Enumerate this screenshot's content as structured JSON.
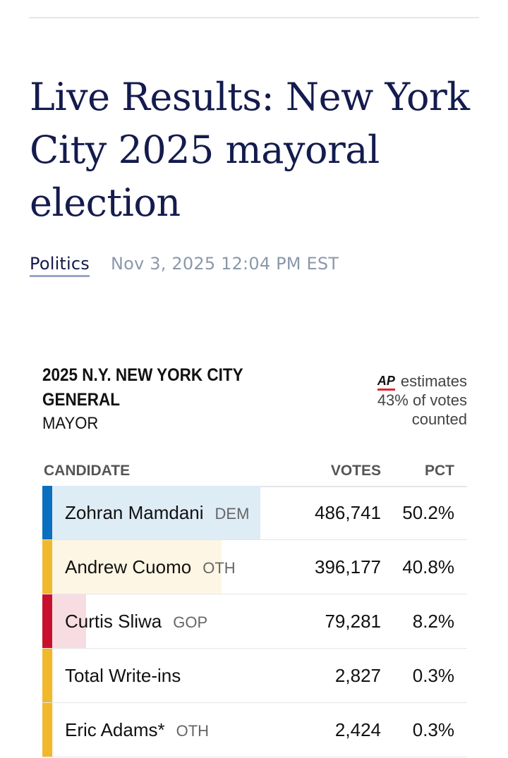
{
  "colors": {
    "headline": "#141b4d",
    "timestamp": "#8b98ab",
    "dem": "#0b6fc0",
    "dem_fill": "#deecf6",
    "oth": "#f0b82b",
    "oth_fill": "#fdf6e4",
    "gop": "#c8102e",
    "gop_fill": "#f7dde1",
    "ap_red": "#e0252b"
  },
  "article": {
    "headline": "Live Results: New York City 2025 mayoral election",
    "section": "Politics",
    "timestamp": "Nov 3, 2025 12:04 PM EST"
  },
  "race": {
    "title": "2025 N.Y. NEW YORK CITY GENERAL",
    "office": "MAYOR",
    "ap_logo": "AP",
    "ap_line1": "estimates",
    "ap_line2": "43% of votes",
    "ap_line3": "counted",
    "headers": {
      "candidate": "CANDIDATE",
      "votes": "VOTES",
      "pct": "PCT"
    },
    "candidates": [
      {
        "name": "Zohran Mamdani",
        "party": "DEM",
        "votes": "486,741",
        "pct": "50.2%",
        "share": 0.502,
        "color": "#0b6fc0",
        "fill": "#deecf6"
      },
      {
        "name": "Andrew Cuomo",
        "party": "OTH",
        "votes": "396,177",
        "pct": "40.8%",
        "share": 0.408,
        "color": "#f0b82b",
        "fill": "#fdf6e4"
      },
      {
        "name": "Curtis Sliwa",
        "party": "GOP",
        "votes": "79,281",
        "pct": "8.2%",
        "share": 0.082,
        "color": "#c8102e",
        "fill": "#f7dde1"
      },
      {
        "name": "Total Write-ins",
        "party": "",
        "votes": "2,827",
        "pct": "0.3%",
        "share": 0.003,
        "color": "#f0b82b",
        "fill": "#fdf6e4"
      },
      {
        "name": "Eric Adams*",
        "party": "OTH",
        "votes": "2,424",
        "pct": "0.3%",
        "share": 0.003,
        "color": "#f0b82b",
        "fill": "#fdf6e4"
      }
    ]
  }
}
